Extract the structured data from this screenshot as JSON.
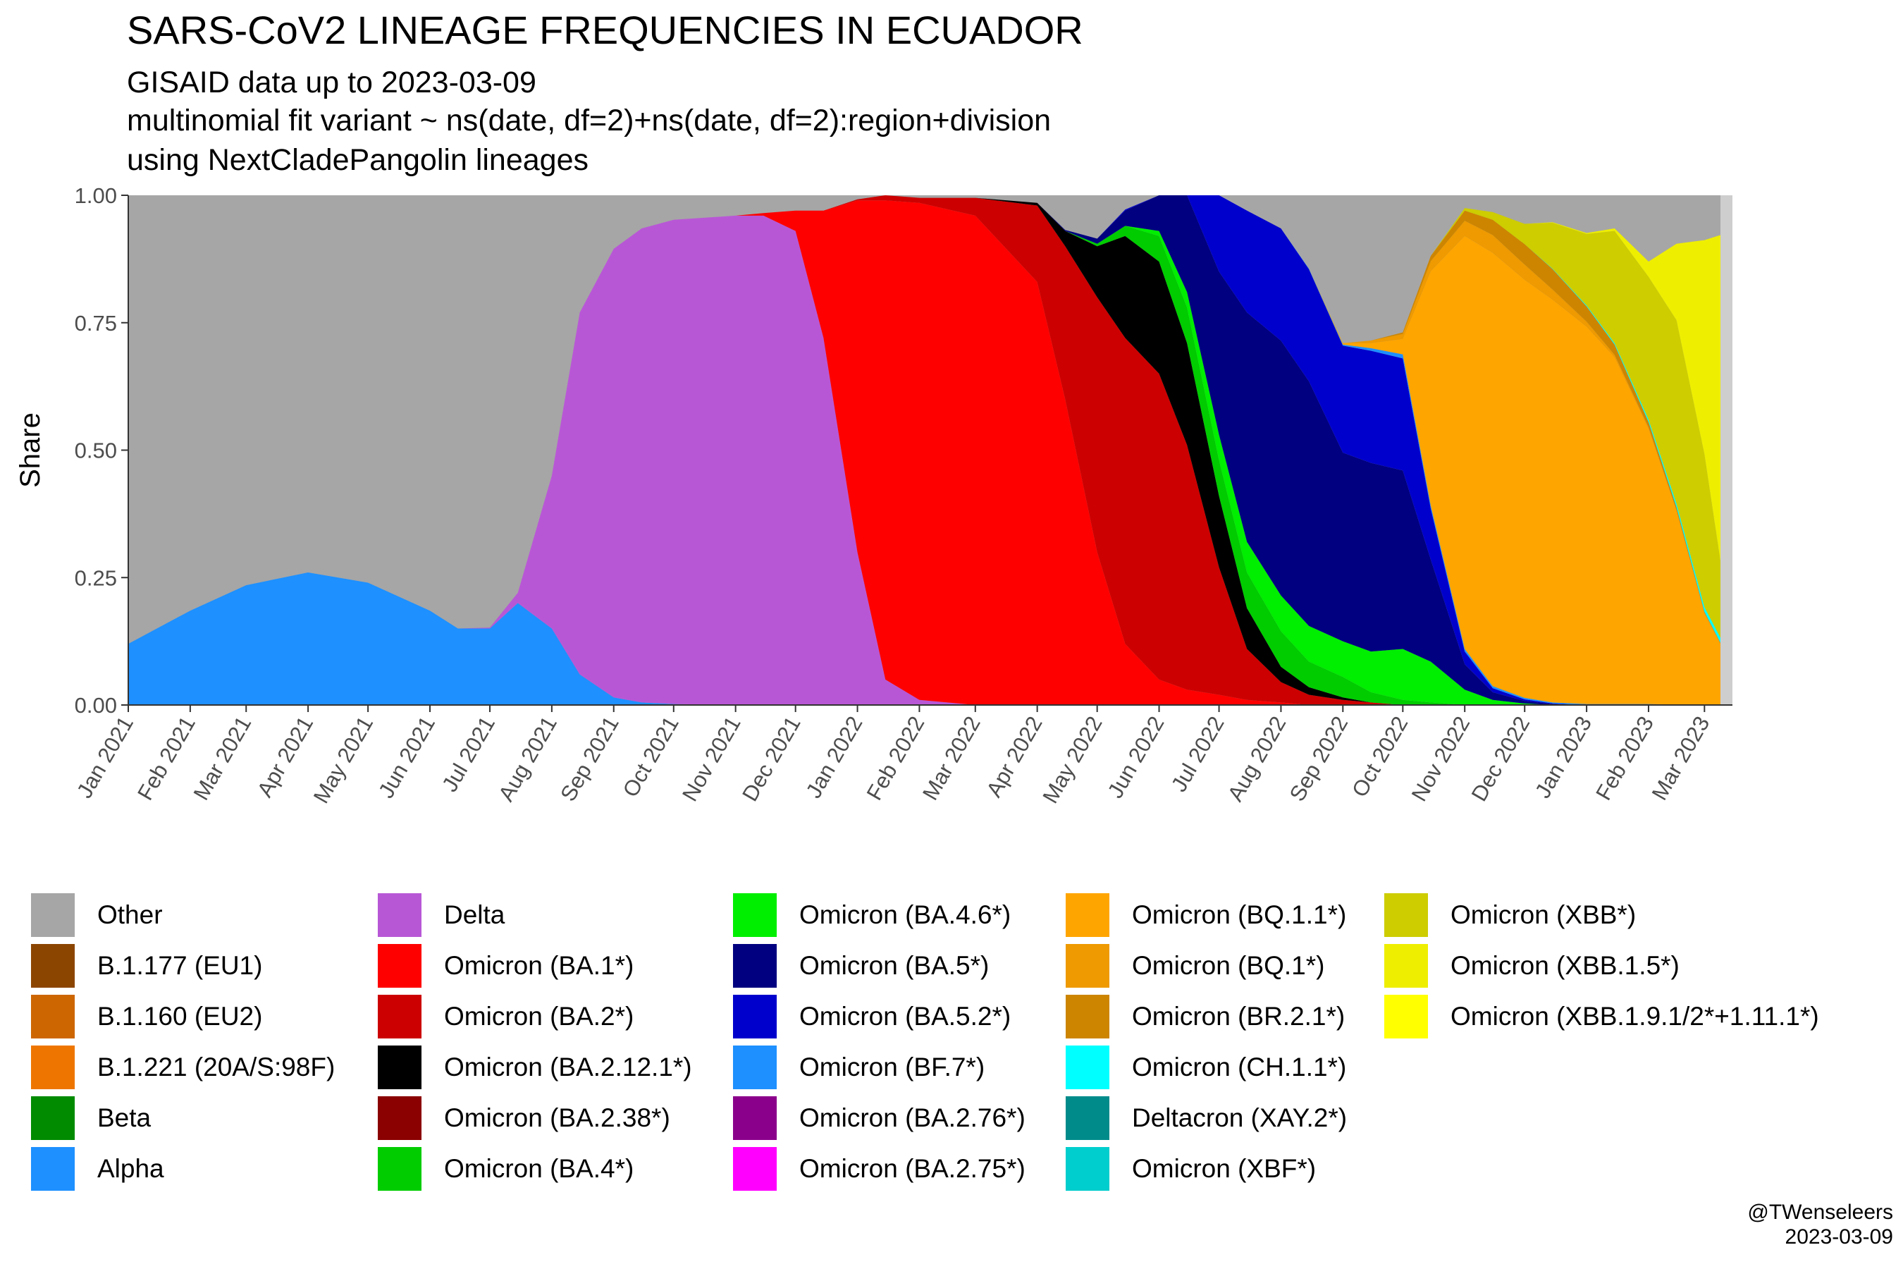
{
  "title": "SARS-CoV2 LINEAGE FREQUENCIES IN ECUADOR",
  "subtitle_lines": [
    "GISAID data up to 2023-03-09",
    "multinomial fit variant ~ ns(date, df=2)+ns(date, df=2):region+division",
    "using NextCladePangolin lineages"
  ],
  "caption": {
    "author": "@TWenseleers",
    "date": "2023-03-09"
  },
  "chart_data": {
    "type": "area",
    "stacked": true,
    "ylabel": "Share",
    "xlabel": "",
    "ylim": [
      0,
      1
    ],
    "yticks": [
      0,
      0.25,
      0.5,
      0.75,
      1
    ],
    "ytick_labels": [
      "0.00",
      "0.25",
      "0.50",
      "0.75",
      "1.00"
    ],
    "xticks": [
      "Jan 2021",
      "Feb 2021",
      "Mar 2021",
      "Apr 2021",
      "May 2021",
      "Jun 2021",
      "Jul 2021",
      "Aug 2021",
      "Sep 2021",
      "Oct 2021",
      "Nov 2021",
      "Dec 2021",
      "Jan 2022",
      "Feb 2022",
      "Mar 2022",
      "Apr 2022",
      "May 2022",
      "Jun 2022",
      "Jul 2022",
      "Aug 2022",
      "Sep 2022",
      "Oct 2022",
      "Nov 2022",
      "Dec 2022",
      "Jan 2023",
      "Feb 2023",
      "Mar 2023"
    ],
    "x_range": [
      "2021-01-01",
      "2023-03-15"
    ],
    "data_cutoff": "2023-03-09",
    "grid": false,
    "legend_position": "bottom",
    "x": [
      "2021-01-01",
      "2021-02-01",
      "2021-03-01",
      "2021-04-01",
      "2021-05-01",
      "2021-06-01",
      "2021-06-15",
      "2021-07-01",
      "2021-07-15",
      "2021-08-01",
      "2021-08-15",
      "2021-09-01",
      "2021-09-15",
      "2021-10-01",
      "2021-11-01",
      "2021-11-15",
      "2021-12-01",
      "2021-12-15",
      "2022-01-01",
      "2022-01-15",
      "2022-02-01",
      "2022-03-01",
      "2022-04-01",
      "2022-04-15",
      "2022-05-01",
      "2022-05-15",
      "2022-06-01",
      "2022-06-15",
      "2022-07-01",
      "2022-07-15",
      "2022-08-01",
      "2022-08-15",
      "2022-09-01",
      "2022-09-15",
      "2022-10-01",
      "2022-10-15",
      "2022-11-01",
      "2022-11-15",
      "2022-12-01",
      "2022-12-15",
      "2023-01-01",
      "2023-01-15",
      "2023-02-01",
      "2023-02-15",
      "2023-03-01",
      "2023-03-09"
    ],
    "series": [
      {
        "name": "Alpha",
        "color": "#1E90FF",
        "values": [
          0.12,
          0.185,
          0.235,
          0.26,
          0.24,
          0.185,
          0.15,
          0.15,
          0.2,
          0.15,
          0.06,
          0.015,
          0.005,
          0.002,
          0,
          0,
          0,
          0,
          0,
          0,
          0,
          0,
          0,
          0,
          0,
          0,
          0,
          0,
          0,
          0,
          0,
          0,
          0,
          0,
          0,
          0,
          0,
          0,
          0,
          0,
          0,
          0,
          0,
          0,
          0,
          0
        ]
      },
      {
        "name": "Delta",
        "color": "#B857D6",
        "values": [
          0,
          0,
          0,
          0,
          0,
          0,
          0,
          0.002,
          0.02,
          0.3,
          0.71,
          0.88,
          0.93,
          0.95,
          0.96,
          0.96,
          0.93,
          0.72,
          0.3,
          0.05,
          0.01,
          0,
          0,
          0,
          0,
          0,
          0,
          0,
          0,
          0,
          0,
          0,
          0,
          0,
          0,
          0,
          0,
          0,
          0,
          0,
          0,
          0,
          0,
          0,
          0,
          0
        ]
      },
      {
        "name": "Omicron (BA.1*)",
        "color": "#FF0000",
        "values": [
          0,
          0,
          0,
          0,
          0,
          0,
          0,
          0,
          0,
          0,
          0,
          0,
          0,
          0,
          0,
          0.005,
          0.04,
          0.25,
          0.69,
          0.94,
          0.975,
          0.96,
          0.83,
          0.6,
          0.3,
          0.12,
          0.05,
          0.03,
          0.02,
          0.01,
          0.005,
          0,
          0,
          0,
          0,
          0,
          0,
          0,
          0,
          0,
          0,
          0,
          0,
          0,
          0,
          0
        ]
      },
      {
        "name": "Omicron (BA.2*)",
        "color": "#CC0000",
        "values": [
          0,
          0,
          0,
          0,
          0,
          0,
          0,
          0,
          0,
          0,
          0,
          0,
          0,
          0,
          0,
          0,
          0,
          0,
          0.002,
          0.01,
          0.01,
          0.035,
          0.15,
          0.3,
          0.5,
          0.6,
          0.6,
          0.48,
          0.25,
          0.1,
          0.04,
          0.02,
          0.01,
          0.005,
          0,
          0,
          0,
          0,
          0,
          0,
          0,
          0,
          0,
          0,
          0,
          0
        ]
      },
      {
        "name": "Omicron (BA.2.12.1*)",
        "color": "#000000",
        "values": [
          0,
          0,
          0,
          0,
          0,
          0,
          0,
          0,
          0,
          0,
          0,
          0,
          0,
          0,
          0,
          0,
          0,
          0,
          0,
          0,
          0,
          0,
          0.005,
          0.03,
          0.1,
          0.2,
          0.22,
          0.2,
          0.14,
          0.08,
          0.03,
          0.015,
          0.005,
          0,
          0,
          0,
          0,
          0,
          0,
          0,
          0,
          0,
          0,
          0,
          0,
          0
        ]
      },
      {
        "name": "Omicron (BA.4*)",
        "color": "#00CC00",
        "values": [
          0,
          0,
          0,
          0,
          0,
          0,
          0,
          0,
          0,
          0,
          0,
          0,
          0,
          0,
          0,
          0,
          0,
          0,
          0,
          0,
          0,
          0,
          0,
          0,
          0.005,
          0.02,
          0.05,
          0.07,
          0.07,
          0.07,
          0.07,
          0.05,
          0.04,
          0.02,
          0.01,
          0.005,
          0,
          0,
          0,
          0,
          0,
          0,
          0,
          0,
          0,
          0
        ]
      },
      {
        "name": "Omicron (BA.4.6*)",
        "color": "#00EE00",
        "values": [
          0,
          0,
          0,
          0,
          0,
          0,
          0,
          0,
          0,
          0,
          0,
          0,
          0,
          0,
          0,
          0,
          0,
          0,
          0,
          0,
          0,
          0,
          0,
          0,
          0,
          0,
          0.01,
          0.03,
          0.05,
          0.06,
          0.07,
          0.07,
          0.07,
          0.08,
          0.1,
          0.08,
          0.03,
          0.01,
          0.003,
          0,
          0,
          0,
          0,
          0,
          0,
          0
        ]
      },
      {
        "name": "Omicron (BA.5*)",
        "color": "#000080",
        "values": [
          0,
          0,
          0,
          0,
          0,
          0,
          0,
          0,
          0,
          0,
          0,
          0,
          0,
          0,
          0,
          0,
          0,
          0,
          0,
          0,
          0,
          0,
          0,
          0.002,
          0.01,
          0.03,
          0.09,
          0.21,
          0.32,
          0.45,
          0.5,
          0.48,
          0.37,
          0.37,
          0.35,
          0.2,
          0.05,
          0.015,
          0.005,
          0.002,
          0,
          0,
          0,
          0,
          0,
          0
        ]
      },
      {
        "name": "Omicron (BA.5.2*)",
        "color": "#0000CD",
        "values": [
          0,
          0,
          0,
          0,
          0,
          0,
          0,
          0,
          0,
          0,
          0,
          0,
          0,
          0,
          0,
          0,
          0,
          0,
          0,
          0,
          0,
          0,
          0,
          0,
          0,
          0.002,
          0.01,
          0.06,
          0.15,
          0.2,
          0.22,
          0.22,
          0.21,
          0.22,
          0.22,
          0.1,
          0.025,
          0.008,
          0.003,
          0.001,
          0,
          0,
          0,
          0,
          0,
          0
        ]
      },
      {
        "name": "Omicron (BF.7*)",
        "color": "#1E90FF",
        "values": [
          0,
          0,
          0,
          0,
          0,
          0,
          0,
          0,
          0,
          0,
          0,
          0,
          0,
          0,
          0,
          0,
          0,
          0,
          0,
          0,
          0,
          0,
          0,
          0,
          0,
          0,
          0,
          0,
          0,
          0,
          0,
          0.001,
          0.002,
          0.005,
          0.008,
          0.006,
          0.005,
          0.004,
          0.003,
          0.002,
          0.002,
          0.002,
          0.002,
          0.001,
          0,
          0
        ]
      },
      {
        "name": "Omicron (BQ.1.1*)",
        "color": "#FFA500",
        "values": [
          0,
          0,
          0,
          0,
          0,
          0,
          0,
          0,
          0,
          0,
          0,
          0,
          0,
          0,
          0,
          0,
          0,
          0,
          0,
          0,
          0,
          0,
          0,
          0,
          0,
          0,
          0,
          0,
          0,
          0,
          0,
          0,
          0.003,
          0.01,
          0.03,
          0.46,
          0.81,
          0.85,
          0.82,
          0.79,
          0.74,
          0.68,
          0.54,
          0.38,
          0.18,
          0.12
        ]
      },
      {
        "name": "Omicron (BQ.1*)",
        "color": "#EE9A00",
        "values": [
          0,
          0,
          0,
          0,
          0,
          0,
          0,
          0,
          0,
          0,
          0,
          0,
          0,
          0,
          0,
          0,
          0,
          0,
          0,
          0,
          0,
          0,
          0,
          0,
          0,
          0,
          0,
          0,
          0,
          0,
          0,
          0,
          0,
          0.005,
          0.01,
          0.02,
          0.03,
          0.035,
          0.03,
          0.02,
          0.01,
          0.005,
          0.003,
          0.002,
          0.001,
          0.001
        ]
      },
      {
        "name": "Omicron (BR.2.1*)",
        "color": "#CD8500",
        "values": [
          0,
          0,
          0,
          0,
          0,
          0,
          0,
          0,
          0,
          0,
          0,
          0,
          0,
          0,
          0,
          0,
          0,
          0,
          0,
          0,
          0,
          0,
          0,
          0,
          0,
          0,
          0,
          0,
          0,
          0,
          0,
          0,
          0,
          0,
          0.003,
          0.01,
          0.02,
          0.03,
          0.04,
          0.04,
          0.03,
          0.02,
          0.01,
          0.005,
          0.002,
          0.001
        ]
      },
      {
        "name": "Omicron (CH.1.1*)",
        "color": "#00FFFF",
        "values": [
          0,
          0,
          0,
          0,
          0,
          0,
          0,
          0,
          0,
          0,
          0,
          0,
          0,
          0,
          0,
          0,
          0,
          0,
          0,
          0,
          0,
          0,
          0,
          0,
          0,
          0,
          0,
          0,
          0,
          0,
          0,
          0,
          0,
          0,
          0,
          0,
          0,
          0,
          0,
          0.001,
          0.002,
          0.003,
          0.005,
          0.007,
          0.009,
          0.01
        ]
      },
      {
        "name": "Omicron (XBB*)",
        "color": "#CDCD00",
        "values": [
          0,
          0,
          0,
          0,
          0,
          0,
          0,
          0,
          0,
          0,
          0,
          0,
          0,
          0,
          0,
          0,
          0,
          0,
          0,
          0,
          0,
          0,
          0,
          0,
          0,
          0,
          0,
          0,
          0,
          0,
          0,
          0,
          0,
          0,
          0,
          0,
          0.005,
          0.015,
          0.04,
          0.09,
          0.14,
          0.22,
          0.28,
          0.36,
          0.3,
          0.15
        ]
      },
      {
        "name": "Omicron (XBB.1.5*)",
        "color": "#EEEE00",
        "values": [
          0,
          0,
          0,
          0,
          0,
          0,
          0,
          0,
          0,
          0,
          0,
          0,
          0,
          0,
          0,
          0,
          0,
          0,
          0,
          0,
          0,
          0,
          0,
          0,
          0,
          0,
          0,
          0,
          0,
          0,
          0,
          0,
          0,
          0,
          0,
          0,
          0,
          0,
          0,
          0.001,
          0.002,
          0.005,
          0.03,
          0.15,
          0.42,
          0.64
        ]
      },
      {
        "name": "Other",
        "color": "#A6A6A6",
        "values": "remainder"
      }
    ]
  },
  "legend": {
    "columns": [
      [
        {
          "label": "Other",
          "color": "#A6A6A6"
        },
        {
          "label": "B.1.177 (EU1)",
          "color": "#8B4500"
        },
        {
          "label": "B.1.160 (EU2)",
          "color": "#CD6600"
        },
        {
          "label": "B.1.221 (20A/S:98F)",
          "color": "#EE7600"
        },
        {
          "label": "Beta",
          "color": "#008B00"
        },
        {
          "label": "Alpha",
          "color": "#1E90FF"
        }
      ],
      [
        {
          "label": "Delta",
          "color": "#B857D6"
        },
        {
          "label": "Omicron (BA.1*)",
          "color": "#FF0000"
        },
        {
          "label": "Omicron (BA.2*)",
          "color": "#CC0000"
        },
        {
          "label": "Omicron (BA.2.12.1*)",
          "color": "#000000"
        },
        {
          "label": "Omicron (BA.2.38*)",
          "color": "#8B0000"
        },
        {
          "label": "Omicron (BA.4*)",
          "color": "#00CC00"
        }
      ],
      [
        {
          "label": "Omicron (BA.4.6*)",
          "color": "#00EE00"
        },
        {
          "label": "Omicron (BA.5*)",
          "color": "#000080"
        },
        {
          "label": "Omicron (BA.5.2*)",
          "color": "#0000CD"
        },
        {
          "label": "Omicron (BF.7*)",
          "color": "#1E90FF"
        },
        {
          "label": "Omicron (BA.2.76*)",
          "color": "#8B008B"
        },
        {
          "label": "Omicron (BA.2.75*)",
          "color": "#FF00FF"
        }
      ],
      [
        {
          "label": "Omicron (BQ.1.1*)",
          "color": "#FFA500"
        },
        {
          "label": "Omicron (BQ.1*)",
          "color": "#EE9A00"
        },
        {
          "label": "Omicron (BR.2.1*)",
          "color": "#CD8500"
        },
        {
          "label": "Omicron (CH.1.1*)",
          "color": "#00FFFF"
        },
        {
          "label": "Deltacron (XAY.2*)",
          "color": "#008B8B"
        },
        {
          "label": "Omicron (XBF*)",
          "color": "#00CDCD"
        }
      ],
      [
        {
          "label": "Omicron (XBB*)",
          "color": "#CDCD00"
        },
        {
          "label": "Omicron (XBB.1.5*)",
          "color": "#EEEE00"
        },
        {
          "label": "Omicron (XBB.1.9.1/2*+1.11.1*)",
          "color": "#FFFF00"
        }
      ]
    ]
  }
}
